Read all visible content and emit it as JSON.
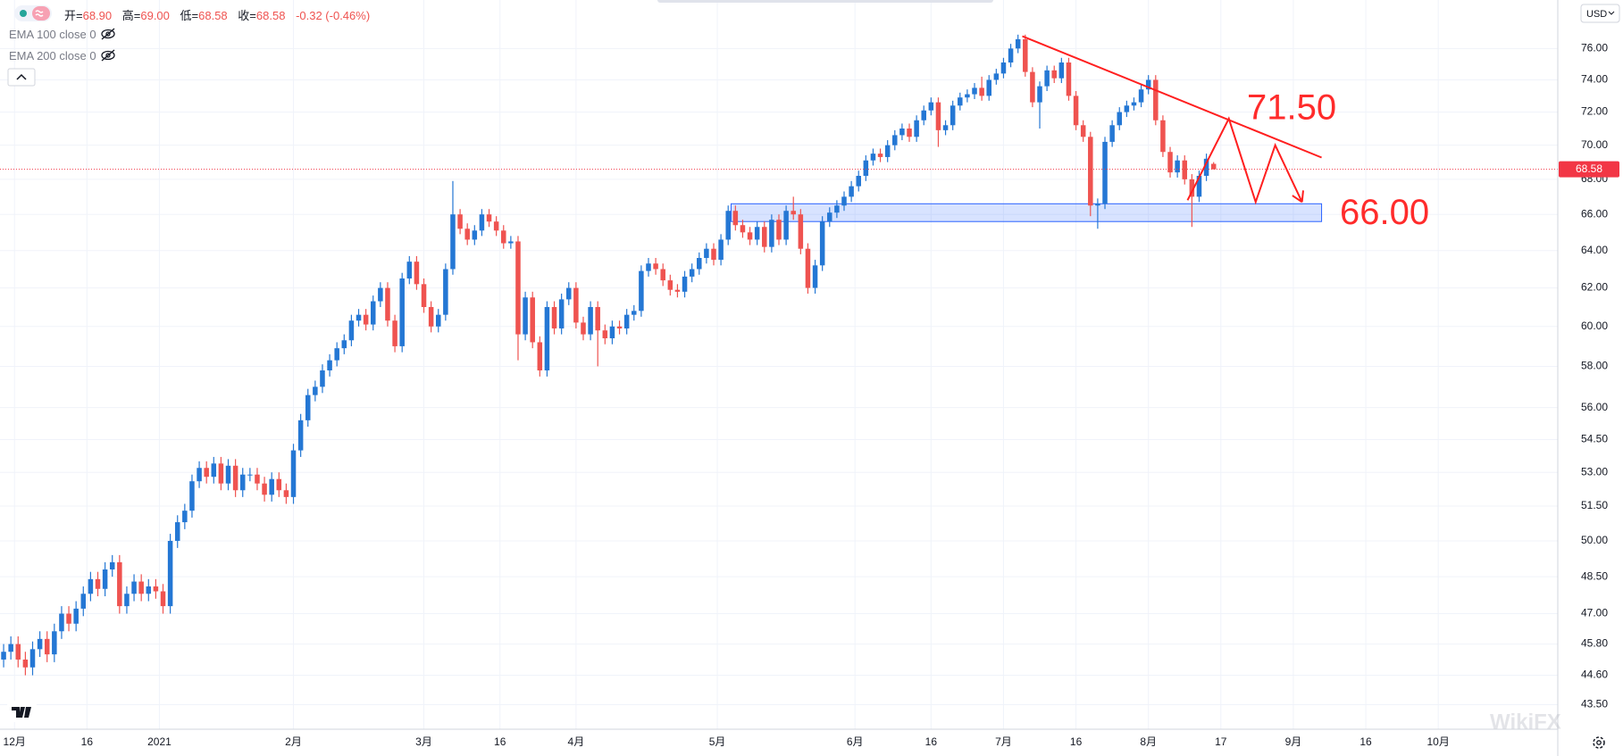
{
  "chart_data": {
    "type": "candlestick",
    "up_color": "#2477d4",
    "down_color": "#ef5350",
    "log_scale": true,
    "grid": true,
    "xlim": [
      0,
      215
    ],
    "ylim": [
      42.6,
      79.2
    ],
    "xticks": [
      {
        "value": 2,
        "label": "12月"
      },
      {
        "value": 12,
        "label": "16"
      },
      {
        "value": 22,
        "label": "2021"
      },
      {
        "value": 40.5,
        "label": "2月"
      },
      {
        "value": 58.5,
        "label": "3月"
      },
      {
        "value": 69,
        "label": "16"
      },
      {
        "value": 79.5,
        "label": "4月"
      },
      {
        "value": 99,
        "label": "5月"
      },
      {
        "value": 118,
        "label": "6月"
      },
      {
        "value": 128.5,
        "label": "16"
      },
      {
        "value": 138.5,
        "label": "7月"
      },
      {
        "value": 148.5,
        "label": "16"
      },
      {
        "value": 158.5,
        "label": "8月"
      },
      {
        "value": 168.5,
        "label": "17"
      },
      {
        "value": 178.5,
        "label": "9月"
      },
      {
        "value": 188.5,
        "label": "16"
      },
      {
        "value": 198.5,
        "label": "10月"
      }
    ],
    "yticks": [
      {
        "value": 43.5,
        "label": "43.50"
      },
      {
        "value": 44.6,
        "label": "44.60"
      },
      {
        "value": 45.8,
        "label": "45.80"
      },
      {
        "value": 47,
        "label": "47.00"
      },
      {
        "value": 48.5,
        "label": "48.50"
      },
      {
        "value": 50,
        "label": "50.00"
      },
      {
        "value": 51.5,
        "label": "51.50"
      },
      {
        "value": 53,
        "label": "53.00"
      },
      {
        "value": 54.5,
        "label": "54.50"
      },
      {
        "value": 56,
        "label": "56.00"
      },
      {
        "value": 58,
        "label": "58.00"
      },
      {
        "value": 60,
        "label": "60.00"
      },
      {
        "value": 62,
        "label": "62.00"
      },
      {
        "value": 64,
        "label": "64.00"
      },
      {
        "value": 66,
        "label": "66.00"
      },
      {
        "value": 68,
        "label": "68.00"
      },
      {
        "value": 70,
        "label": "70.00"
      },
      {
        "value": 72,
        "label": "72.00"
      },
      {
        "value": 74,
        "label": "74.00"
      },
      {
        "value": 76,
        "label": "76.00"
      }
    ],
    "open": [
      45.2,
      45.5,
      45.8,
      45.2,
      44.9,
      45.6,
      46.0,
      45.4,
      46.3,
      47.0,
      46.6,
      47.2,
      47.8,
      48.4,
      48.0,
      48.8,
      49.1,
      47.3,
      47.8,
      48.3,
      47.8,
      48.1,
      47.9,
      47.3,
      50.0,
      50.8,
      51.3,
      52.6,
      53.2,
      52.8,
      53.4,
      52.5,
      53.3,
      52.2,
      52.9,
      52.9,
      52.5,
      52.0,
      52.7,
      52.2,
      51.9,
      54.0,
      55.4,
      56.6,
      57.0,
      57.8,
      58.3,
      58.9,
      59.3,
      60.3,
      60.6,
      60.1,
      61.3,
      62.0,
      60.3,
      59.0,
      62.5,
      63.4,
      62.2,
      61.0,
      60.0,
      60.6,
      63.0,
      66.0,
      65.2,
      64.6,
      65.1,
      66.0,
      65.6,
      65.1,
      64.4,
      64.5,
      59.6,
      61.5,
      59.2,
      57.8,
      61.0,
      59.9,
      61.4,
      62.0,
      60.2,
      59.6,
      61.0,
      59.8,
      59.4,
      60.0,
      59.9,
      60.6,
      60.8,
      62.9,
      63.3,
      63.0,
      62.4,
      61.9,
      61.8,
      62.6,
      63.0,
      63.6,
      64.1,
      63.5,
      64.6,
      66.2,
      65.4,
      65.0,
      64.6,
      65.3,
      64.2,
      65.7,
      64.6,
      66.2,
      66.0,
      64.1,
      62.0,
      63.2,
      65.6,
      66.1,
      66.5,
      67.0,
      67.6,
      68.2,
      69.1,
      69.5,
      69.3,
      70.0,
      70.6,
      71.0,
      70.5,
      71.5,
      72.1,
      72.6,
      70.9,
      71.2,
      72.4,
      72.9,
      73.1,
      73.5,
      73.0,
      74.0,
      74.4,
      75.1,
      76.0,
      76.6,
      74.5,
      72.6,
      73.6,
      74.6,
      74.1,
      75.1,
      73.0,
      71.2,
      70.5,
      66.5,
      66.6,
      70.2,
      71.2,
      72.0,
      72.4,
      72.6,
      73.4,
      74.0,
      71.5,
      69.6,
      68.4,
      69.1,
      68.0,
      67.0,
      68.2,
      68.9
    ],
    "high": [
      45.8,
      46.1,
      46.1,
      45.5,
      45.9,
      46.3,
      46.3,
      46.6,
      47.3,
      47.3,
      47.5,
      48.1,
      48.7,
      48.7,
      49.1,
      49.4,
      49.4,
      48.1,
      48.6,
      48.6,
      48.4,
      48.4,
      48.2,
      50.3,
      51.1,
      51.6,
      52.9,
      53.5,
      53.5,
      53.7,
      53.7,
      53.6,
      53.6,
      53.2,
      53.2,
      53.2,
      52.8,
      53.0,
      53.0,
      52.5,
      54.3,
      55.7,
      56.9,
      57.3,
      58.1,
      58.6,
      59.2,
      59.6,
      60.6,
      60.9,
      60.9,
      61.6,
      62.3,
      62.3,
      60.6,
      62.8,
      63.7,
      63.7,
      62.5,
      61.3,
      60.9,
      63.3,
      67.9,
      66.3,
      65.5,
      65.4,
      66.3,
      66.3,
      65.9,
      65.4,
      64.8,
      64.8,
      61.8,
      61.8,
      59.5,
      61.3,
      61.3,
      61.7,
      62.3,
      62.3,
      60.5,
      61.3,
      61.3,
      60.1,
      60.3,
      60.3,
      60.9,
      61.1,
      63.2,
      63.6,
      63.6,
      63.3,
      62.7,
      62.2,
      62.9,
      63.3,
      63.9,
      64.4,
      64.4,
      64.9,
      66.5,
      66.5,
      65.7,
      65.3,
      65.6,
      65.6,
      66.0,
      66.0,
      66.5,
      67.0,
      66.3,
      64.4,
      63.5,
      65.9,
      66.4,
      66.8,
      67.3,
      67.9,
      68.5,
      69.4,
      69.8,
      69.8,
      70.3,
      70.9,
      71.3,
      71.3,
      71.8,
      72.4,
      72.9,
      72.9,
      71.5,
      72.7,
      73.2,
      73.4,
      73.8,
      74.2,
      74.3,
      74.7,
      75.4,
      76.3,
      76.9,
      76.9,
      74.8,
      73.9,
      74.9,
      74.9,
      75.4,
      75.4,
      73.3,
      71.5,
      70.8,
      66.9,
      70.5,
      71.5,
      72.3,
      72.7,
      72.9,
      73.7,
      74.3,
      74.3,
      71.8,
      69.9,
      69.4,
      69.4,
      68.3,
      68.5,
      69.5,
      69.0
    ],
    "low": [
      44.9,
      45.2,
      44.9,
      44.6,
      44.6,
      45.3,
      45.1,
      45.1,
      46.0,
      46.3,
      46.3,
      46.9,
      47.5,
      47.7,
      47.7,
      48.5,
      47.0,
      47.0,
      47.5,
      47.5,
      47.5,
      47.6,
      47.0,
      47.0,
      49.7,
      50.5,
      51.0,
      52.3,
      52.5,
      52.5,
      52.2,
      52.2,
      51.9,
      51.9,
      52.6,
      52.2,
      51.7,
      51.7,
      51.9,
      51.6,
      51.6,
      53.7,
      55.1,
      56.3,
      56.7,
      57.5,
      58.0,
      58.6,
      59.0,
      60.0,
      59.8,
      59.8,
      61.0,
      60.0,
      58.7,
      58.7,
      62.2,
      61.9,
      60.7,
      59.7,
      59.7,
      60.3,
      62.7,
      64.9,
      64.3,
      64.3,
      64.8,
      65.3,
      64.8,
      64.1,
      64.1,
      58.3,
      59.3,
      58.9,
      57.5,
      57.5,
      59.6,
      59.6,
      61.1,
      59.9,
      59.3,
      59.3,
      58.0,
      59.1,
      59.1,
      59.6,
      59.6,
      60.3,
      60.5,
      62.6,
      62.7,
      62.1,
      61.6,
      61.5,
      61.5,
      62.3,
      62.7,
      63.3,
      63.2,
      63.2,
      64.3,
      65.1,
      64.7,
      64.3,
      64.3,
      63.9,
      63.9,
      64.3,
      64.3,
      65.7,
      63.8,
      61.7,
      61.7,
      62.9,
      65.3,
      65.8,
      66.2,
      66.7,
      67.3,
      67.9,
      68.8,
      69.0,
      69.0,
      69.7,
      70.3,
      70.2,
      70.2,
      71.2,
      71.8,
      69.9,
      70.6,
      70.9,
      72.1,
      72.6,
      72.8,
      72.7,
      72.7,
      73.7,
      74.1,
      74.8,
      75.7,
      74.2,
      72.3,
      71.0,
      73.3,
      73.8,
      73.8,
      72.7,
      70.9,
      70.2,
      65.9,
      65.2,
      66.3,
      69.9,
      70.9,
      71.7,
      72.1,
      72.3,
      73.1,
      71.2,
      69.3,
      68.1,
      68.1,
      67.7,
      65.3,
      66.7,
      67.9,
      68.58
    ],
    "close": [
      45.5,
      45.8,
      45.2,
      44.9,
      45.6,
      46.0,
      45.4,
      46.3,
      47.0,
      46.6,
      47.2,
      47.8,
      48.4,
      48.0,
      48.8,
      49.1,
      47.3,
      47.8,
      48.3,
      47.8,
      48.1,
      47.9,
      47.3,
      50.0,
      50.8,
      51.3,
      52.6,
      53.2,
      52.8,
      53.4,
      52.5,
      53.3,
      52.2,
      52.9,
      52.9,
      52.5,
      52.0,
      52.7,
      52.2,
      51.9,
      54.0,
      55.4,
      56.6,
      57.0,
      57.8,
      58.3,
      58.9,
      59.3,
      60.3,
      60.6,
      60.1,
      61.3,
      62.0,
      60.3,
      59.0,
      62.5,
      63.4,
      62.2,
      61.0,
      60.0,
      60.6,
      63.0,
      66.0,
      65.2,
      64.6,
      65.1,
      66.0,
      65.6,
      65.1,
      64.4,
      64.5,
      59.6,
      61.5,
      59.2,
      57.8,
      61.0,
      59.9,
      61.4,
      62.0,
      60.2,
      59.6,
      61.0,
      59.8,
      59.4,
      60.0,
      59.9,
      60.6,
      60.8,
      62.9,
      63.3,
      63.0,
      62.4,
      61.9,
      61.8,
      62.6,
      63.0,
      63.6,
      64.1,
      63.5,
      64.6,
      66.2,
      65.4,
      65.0,
      64.6,
      65.3,
      64.2,
      65.7,
      64.6,
      66.2,
      66.0,
      64.1,
      62.0,
      63.2,
      65.6,
      66.1,
      66.5,
      67.0,
      67.6,
      68.2,
      69.1,
      69.5,
      69.3,
      70.0,
      70.6,
      71.0,
      70.5,
      71.5,
      72.1,
      72.6,
      70.9,
      71.2,
      72.4,
      72.9,
      73.1,
      73.5,
      73.0,
      74.0,
      74.4,
      75.1,
      76.0,
      76.6,
      74.5,
      72.6,
      73.6,
      74.6,
      74.1,
      75.1,
      73.0,
      71.2,
      70.5,
      66.5,
      66.6,
      70.2,
      71.2,
      72.0,
      72.4,
      72.6,
      73.4,
      74.0,
      71.5,
      69.6,
      68.4,
      69.1,
      68.0,
      67.0,
      68.2,
      69.2,
      68.58
    ],
    "zone": {
      "xlim": [
        100.9,
        182.4
      ],
      "ylim": [
        65.6,
        66.6
      ],
      "color": "#2962ff"
    },
    "trend_line": {
      "x": [
        141.1,
        182.4
      ],
      "y": [
        76.8,
        69.27
      ],
      "color": "#ff1f1f"
    },
    "projection": {
      "x": [
        163.9,
        169.6,
        173.3,
        176,
        179.7
      ],
      "y": [
        66.8,
        71.6,
        66.7,
        70.0,
        66.7
      ],
      "color": "#ff1f1f"
    },
    "annotations": [
      {
        "value": 71.5,
        "label": "71.50"
      },
      {
        "value": 66,
        "label": "66.00"
      }
    ],
    "price_line_color": "#f23645"
  },
  "header": {
    "ohlc": [
      {
        "label": "开=",
        "value": "68.90"
      },
      {
        "label": "高=",
        "value": "69.00"
      },
      {
        "label": "低=",
        "value": "68.58"
      },
      {
        "label": "收=",
        "value": "68.58"
      }
    ],
    "change": "-0.32 (-0.46%)"
  },
  "indicators": [
    "EMA 100 close 0",
    "EMA 200 close 0"
  ],
  "currency": "USD",
  "watermark": "WikiFX"
}
